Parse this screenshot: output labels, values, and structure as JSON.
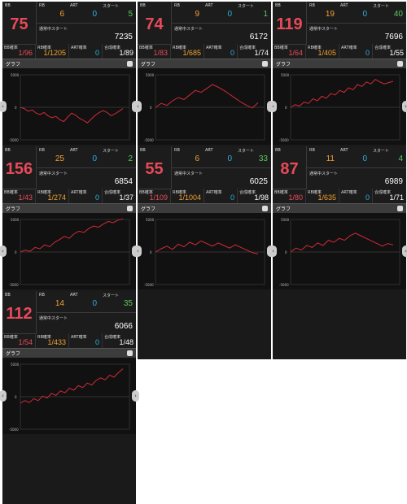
{
  "labels": {
    "bb": "BB",
    "rb": "RB",
    "art": "ART",
    "start": "スタート",
    "normal_start": "通常中スタート",
    "bb_rate": "BB確率",
    "rb_rate": "RB確率",
    "art_rate": "ART確率",
    "total_rate": "合成確率",
    "graph": "グラフ",
    "y_top": "5000",
    "y_zero": "0",
    "y_bottom": "-5000"
  },
  "colors": {
    "bb": "#e84a5a",
    "rb": "#f0a030",
    "art": "#2ab0e0",
    "start": "#5cc85c",
    "line": "#d22a3a"
  },
  "machines": [
    {
      "bb": "75",
      "rb": "6",
      "art": "0",
      "start": "5",
      "normal_start": "7235",
      "bb_rate": "1/96",
      "rb_rate": "1/1205",
      "art_rate": "0",
      "total_rate": "1/89",
      "graph": [
        0,
        -200,
        -600,
        -400,
        -900,
        -1100,
        -800,
        -1300,
        -1600,
        -1400,
        -1900,
        -2200,
        -1500,
        -900,
        -1200,
        -1700,
        -2000,
        -2400,
        -1800,
        -1200,
        -800,
        -500,
        -800,
        -1300,
        -1000,
        -600,
        -200
      ]
    },
    {
      "bb": "74",
      "rb": "9",
      "art": "0",
      "start": "1",
      "normal_start": "6172",
      "bb_rate": "1/83",
      "rb_rate": "1/685",
      "art_rate": "0",
      "total_rate": "1/74",
      "graph": [
        0,
        600,
        300,
        1000,
        1500,
        1200,
        1900,
        2600,
        2300,
        2900,
        3500,
        3100,
        2600,
        2000,
        1400,
        800,
        300,
        -100,
        700
      ]
    },
    {
      "bb": "119",
      "rb": "19",
      "art": "0",
      "start": "40",
      "normal_start": "7696",
      "bb_rate": "1/64",
      "rb_rate": "1/405",
      "art_rate": "0",
      "total_rate": "1/55",
      "graph": [
        0,
        400,
        200,
        800,
        600,
        1300,
        1000,
        1700,
        1400,
        2100,
        1900,
        2600,
        2300,
        3000,
        2700,
        3500,
        3200,
        3900,
        3600,
        4300,
        3900,
        3600,
        3800,
        4000
      ]
    },
    {
      "bb": "156",
      "rb": "25",
      "art": "0",
      "start": "2",
      "normal_start": "6854",
      "bb_rate": "1/43",
      "rb_rate": "1/274",
      "art_rate": "0",
      "total_rate": "1/37",
      "graph": [
        0,
        300,
        100,
        700,
        500,
        1100,
        800,
        1500,
        1900,
        2400,
        2100,
        2800,
        3200,
        3000,
        3600,
        4000,
        3800,
        4300,
        4700,
        4500,
        4900,
        5100
      ]
    },
    {
      "bb": "55",
      "rb": "6",
      "art": "0",
      "start": "33",
      "normal_start": "6025",
      "bb_rate": "1/109",
      "rb_rate": "1/1004",
      "art_rate": "0",
      "total_rate": "1/98",
      "graph": [
        0,
        500,
        900,
        400,
        1200,
        800,
        1500,
        1100,
        1700,
        1300,
        900,
        1400,
        1000,
        600,
        1100,
        700,
        300,
        -100,
        -300
      ]
    },
    {
      "bb": "87",
      "rb": "11",
      "art": "0",
      "start": "4",
      "normal_start": "6989",
      "bb_rate": "1/80",
      "rb_rate": "1/635",
      "art_rate": "0",
      "total_rate": "1/71",
      "graph": [
        0,
        600,
        300,
        1000,
        700,
        1400,
        1000,
        1800,
        1500,
        2100,
        1800,
        2500,
        2900,
        2500,
        2100,
        1700,
        1300,
        900,
        1300,
        1100
      ]
    },
    {
      "bb": "112",
      "rb": "14",
      "art": "0",
      "start": "35",
      "normal_start": "6066",
      "bb_rate": "1/54",
      "rb_rate": "1/433",
      "art_rate": "0",
      "total_rate": "1/48",
      "graph": [
        -1000,
        -600,
        -900,
        -300,
        -600,
        100,
        -200,
        500,
        200,
        900,
        600,
        1300,
        1000,
        1700,
        1400,
        2100,
        1800,
        2500,
        2900,
        2600,
        3300,
        3000,
        3700,
        4300
      ]
    }
  ]
}
